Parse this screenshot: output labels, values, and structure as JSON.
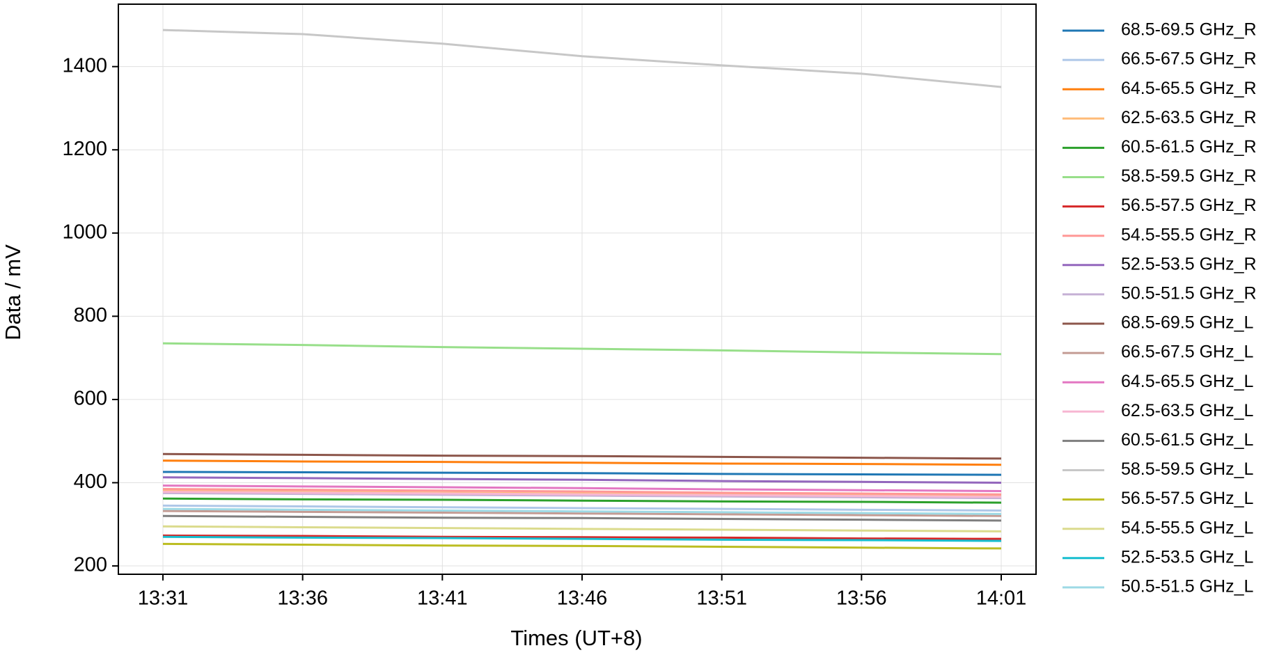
{
  "chart_data": {
    "type": "line",
    "x_label": "Times (UT+8)",
    "y_label": "Data / mV",
    "x": [
      "13:31",
      "13:36",
      "13:41",
      "13:46",
      "13:51",
      "13:56",
      "14:01"
    ],
    "ylim": [
      180,
      1550
    ],
    "yticks": [
      200,
      400,
      600,
      800,
      1000,
      1200,
      1400
    ],
    "grid": true,
    "legend": "outside right",
    "series": [
      {
        "name": "68.5-69.5 GHz_R",
        "color": "#1f77b4",
        "values": [
          426,
          425,
          424,
          423,
          421,
          420,
          419
        ]
      },
      {
        "name": "66.5-67.5 GHz_R",
        "color": "#aec7e8",
        "values": [
          345,
          343,
          341,
          339,
          337,
          335,
          333
        ]
      },
      {
        "name": "64.5-65.5 GHz_R",
        "color": "#ff7f0e",
        "values": [
          453,
          451,
          450,
          448,
          446,
          445,
          443
        ]
      },
      {
        "name": "62.5-63.5 GHz_R",
        "color": "#ffbb78",
        "values": [
          380,
          378,
          376,
          374,
          372,
          370,
          368
        ]
      },
      {
        "name": "60.5-61.5 GHz_R",
        "color": "#2ca02c",
        "values": [
          362,
          360,
          359,
          357,
          355,
          354,
          352
        ]
      },
      {
        "name": "58.5-59.5 GHz_R",
        "color": "#98df8a",
        "values": [
          735,
          731,
          726,
          722,
          718,
          713,
          709
        ]
      },
      {
        "name": "56.5-57.5 GHz_R",
        "color": "#d62728",
        "values": [
          273,
          272,
          270,
          269,
          268,
          266,
          265
        ]
      },
      {
        "name": "54.5-55.5 GHz_R",
        "color": "#ff9896",
        "values": [
          385,
          383,
          381,
          379,
          376,
          374,
          372
        ]
      },
      {
        "name": "52.5-53.5 GHz_R",
        "color": "#9467bd",
        "values": [
          413,
          411,
          409,
          407,
          404,
          402,
          400
        ]
      },
      {
        "name": "50.5-51.5 GHz_R",
        "color": "#c5b0d5",
        "values": [
          375,
          373,
          371,
          369,
          367,
          365,
          363
        ]
      },
      {
        "name": "68.5-69.5 GHz_L",
        "color": "#8c564b",
        "values": [
          469,
          467,
          465,
          464,
          462,
          460,
          458
        ]
      },
      {
        "name": "66.5-67.5 GHz_L",
        "color": "#c49c94",
        "values": [
          332,
          330,
          328,
          326,
          324,
          322,
          320
        ]
      },
      {
        "name": "64.5-65.5 GHz_L",
        "color": "#e377c2",
        "values": [
          393,
          391,
          389,
          387,
          384,
          382,
          380
        ]
      },
      {
        "name": "62.5-63.5 GHz_L",
        "color": "#f7b6d2",
        "values": [
          378,
          376,
          374,
          372,
          370,
          368,
          366
        ]
      },
      {
        "name": "60.5-61.5 GHz_L",
        "color": "#7f7f7f",
        "values": [
          320,
          318,
          316,
          315,
          313,
          311,
          309
        ]
      },
      {
        "name": "58.5-59.5 GHz_L",
        "color": "#c7c7c7",
        "values": [
          1488,
          1478,
          1455,
          1425,
          1403,
          1383,
          1351
        ]
      },
      {
        "name": "56.5-57.5 GHz_L",
        "color": "#bcbd22",
        "values": [
          253,
          251,
          249,
          248,
          246,
          244,
          242
        ]
      },
      {
        "name": "54.5-55.5 GHz_L",
        "color": "#dbdb8d",
        "values": [
          295,
          293,
          291,
          289,
          287,
          285,
          283
        ]
      },
      {
        "name": "52.5-53.5 GHz_L",
        "color": "#17becf",
        "values": [
          270,
          268,
          267,
          265,
          263,
          262,
          260
        ]
      },
      {
        "name": "50.5-51.5 GHz_L",
        "color": "#9edae5",
        "values": [
          337,
          335,
          333,
          331,
          329,
          327,
          325
        ]
      }
    ]
  }
}
